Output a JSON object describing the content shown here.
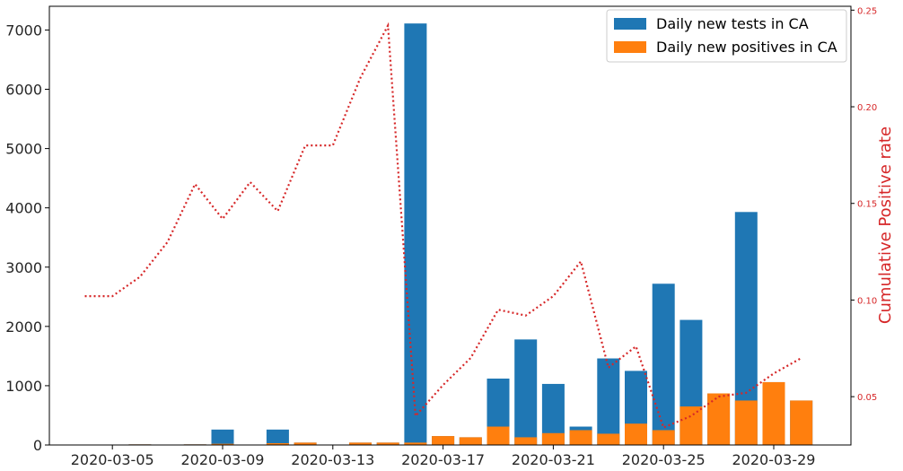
{
  "chart_data": {
    "type": "bar",
    "x": [
      "2020-03-04",
      "2020-03-05",
      "2020-03-06",
      "2020-03-07",
      "2020-03-08",
      "2020-03-09",
      "2020-03-10",
      "2020-03-11",
      "2020-03-12",
      "2020-03-13",
      "2020-03-14",
      "2020-03-15",
      "2020-03-16",
      "2020-03-17",
      "2020-03-18",
      "2020-03-19",
      "2020-03-20",
      "2020-03-21",
      "2020-03-22",
      "2020-03-23",
      "2020-03-24",
      "2020-03-25",
      "2020-03-26",
      "2020-03-27",
      "2020-03-28",
      "2020-03-29",
      "2020-03-30"
    ],
    "x_tick_labels": [
      "2020-03-05",
      "2020-03-09",
      "2020-03-13",
      "2020-03-17",
      "2020-03-21",
      "2020-03-25",
      "2020-03-29"
    ],
    "series": [
      {
        "name": "Daily new tests in CA",
        "color": "#1f77b4",
        "axis": "left",
        "kind": "bar",
        "values": [
          0,
          0,
          10,
          5,
          10,
          260,
          5,
          260,
          40,
          0,
          40,
          40,
          7110,
          150,
          130,
          1120,
          1780,
          1030,
          310,
          1460,
          1250,
          2720,
          2110,
          870,
          3930,
          1060,
          750
        ]
      },
      {
        "name": "Daily new positives in CA",
        "color": "#ff7f0e",
        "axis": "left",
        "kind": "bar",
        "values": [
          0,
          0,
          10,
          5,
          10,
          20,
          5,
          30,
          40,
          0,
          40,
          40,
          40,
          150,
          130,
          310,
          130,
          200,
          250,
          190,
          360,
          250,
          650,
          870,
          750,
          1060,
          750
        ]
      },
      {
        "name": "Cumulative Positive rate",
        "color": "#d62728",
        "axis": "right",
        "kind": "line",
        "style": "dotted",
        "values": [
          0.102,
          0.102,
          0.112,
          0.13,
          0.16,
          0.142,
          0.161,
          0.146,
          0.18,
          0.18,
          0.215,
          0.242,
          0.04,
          0.056,
          0.07,
          0.095,
          0.092,
          0.102,
          0.12,
          0.065,
          0.076,
          0.034,
          0.04,
          0.05,
          0.052,
          0.062,
          0.07
        ]
      }
    ],
    "y_left": {
      "lim": [
        0,
        7400
      ],
      "ticks": [
        0,
        1000,
        2000,
        3000,
        4000,
        5000,
        6000,
        7000
      ]
    },
    "y_right": {
      "label": "Cumulative Positive rate",
      "lim": [
        0.025,
        0.252
      ],
      "ticks": [
        0.05,
        0.1,
        0.15,
        0.2,
        0.25
      ],
      "tick_labels": [
        "0.05",
        "0.10",
        "0.15",
        "0.20",
        "0.25"
      ]
    },
    "grid": false,
    "legend": {
      "position": "top-right",
      "entries": [
        {
          "label": "Daily new tests in CA",
          "color": "#1f77b4"
        },
        {
          "label": "Daily new positives in CA",
          "color": "#ff7f0e"
        }
      ]
    }
  }
}
